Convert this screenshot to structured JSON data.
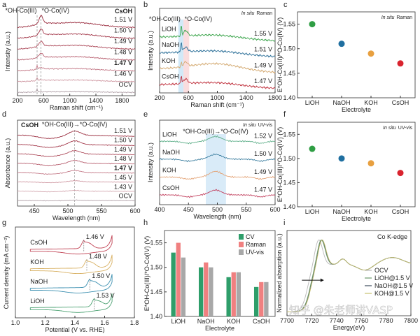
{
  "chart_data": [
    {
      "panel": "a",
      "type": "line",
      "title": "CsOH",
      "xlabel": "Raman shift (cm⁻¹)",
      "ylabel": "Intensity (a.u.)",
      "xlim": [
        200,
        2000
      ],
      "xticks": [
        "200",
        "600",
        "1000",
        "1400",
        "1800"
      ],
      "annotations": [
        "*OH-Co(III)",
        "*O-Co(IV)"
      ],
      "marker_lines_x": [
        500,
        560
      ],
      "series": [
        {
          "name": "1.51 V",
          "color": "#9a2c3e",
          "peak_500": 0.0,
          "peak_560": 0.75,
          "broad": 0.45
        },
        {
          "name": "1.50 V",
          "color": "#a3384a",
          "peak_500": 0.0,
          "peak_560": 0.55,
          "broad": 0.4
        },
        {
          "name": "1.49 V",
          "color": "#ad4a5a",
          "peak_500": 0.05,
          "peak_560": 0.45,
          "broad": 0.35
        },
        {
          "name": "1.48 V",
          "color": "#b86070",
          "peak_500": 0.1,
          "peak_560": 0.4,
          "broad": 0.3
        },
        {
          "name": "1.47 V",
          "color": "#c47a88",
          "peak_500": 0.35,
          "peak_560": 0.15,
          "broad": 0.2,
          "bold": true
        },
        {
          "name": "1.46 V",
          "color": "#cf98a2",
          "peak_500": 0.3,
          "peak_560": 0.05,
          "broad": 0.15
        },
        {
          "name": "OCV",
          "color": "#b0a0a8",
          "peak_500": 0.25,
          "peak_560": 0.0,
          "broad": 0.08
        }
      ]
    },
    {
      "panel": "b",
      "type": "line",
      "xlabel": "Raman shift (cm⁻¹)",
      "ylabel": "Intensity (a.u.)",
      "xlim": [
        200,
        1800
      ],
      "xticks": [
        "200",
        "600",
        "1000",
        "1400",
        "1800"
      ],
      "annotation_italic": "In situ",
      "annotation": "Raman",
      "annotations": [
        "*OH-Co(III)",
        "*O-Co(IV)"
      ],
      "bands": [
        {
          "from": 460,
          "to": 530,
          "color": "#bfe0f5"
        },
        {
          "from": 530,
          "to": 610,
          "color": "#f8cfd0"
        }
      ],
      "series": [
        {
          "name": "LiOH",
          "potential": "1.55 V",
          "color": "#3ca54c",
          "peak_sharp": 0.7,
          "peak_broad": 0.35
        },
        {
          "name": "NaOH",
          "potential": "1.51 V",
          "color": "#2b6f98",
          "peak_sharp": 0.7,
          "peak_broad": 0.3
        },
        {
          "name": "KOH",
          "potential": "1.49 V",
          "color": "#d4aa72",
          "peak_sharp": 0.25,
          "peak_broad": 0.3
        },
        {
          "name": "CsOH",
          "potential": "1.47 V",
          "color": "#c0313d",
          "peak_sharp": 0.55,
          "peak_broad": 0.3
        }
      ]
    },
    {
      "panel": "c",
      "type": "scatter",
      "categories": [
        "LiOH",
        "NaOH",
        "KOH",
        "CsOH"
      ],
      "values": [
        1.55,
        1.51,
        1.49,
        1.47
      ],
      "colors": [
        "#2f9e44",
        "#1f6fa0",
        "#e8a040",
        "#d9232e"
      ],
      "xlabel": "Electrolyte",
      "ylabel": "E*OH-Co(III)/*O-Co(IV) (V)",
      "ylim": [
        1.4,
        1.575
      ],
      "yticks": [
        "1.40",
        "1.45",
        "1.50",
        "1.55"
      ],
      "annotation_italic": "In situ",
      "annotation": "Raman"
    },
    {
      "panel": "d",
      "type": "line",
      "title": "CsOH",
      "xlabel": "Wavelength (nm)",
      "ylabel": "Absorbance (a.u.)",
      "xlim": [
        425,
        600
      ],
      "xticks": [
        "450",
        "500",
        "550",
        "600"
      ],
      "annotation": "*OH-Co(III)→*O-Co(IV)",
      "marker_line_x": 510,
      "series": [
        {
          "name": "1.51 V",
          "color": "#9a2c3e",
          "peak": 0.45
        },
        {
          "name": "1.50 V",
          "color": "#a3384a",
          "peak": 0.4
        },
        {
          "name": "1.49 V",
          "color": "#ad4a5a",
          "peak": 0.35
        },
        {
          "name": "1.48 V",
          "color": "#b86070",
          "peak": 0.3
        },
        {
          "name": "1.47 V",
          "color": "#c47a88",
          "peak": 0.22,
          "bold": true
        },
        {
          "name": "1.45 V",
          "color": "#cf98a2",
          "peak": 0.12
        },
        {
          "name": "1.43 V",
          "color": "#d4a8b0",
          "peak": 0.08
        },
        {
          "name": "OCV",
          "color": "#b0a0a8",
          "peak": 0.04
        }
      ]
    },
    {
      "panel": "e",
      "type": "line",
      "xlabel": "Wavelength (nm)",
      "ylabel": "Intensity (a.u.)",
      "xlim": [
        400,
        600
      ],
      "xticks": [
        "400",
        "450",
        "500",
        "550",
        "600"
      ],
      "annotation_italic": "In situ",
      "annotation": "UV-vis",
      "band_label": "*OH-Co(III)→*O-Co(IV)",
      "band": {
        "from": 480,
        "to": 515,
        "color": "#cfe6f6"
      },
      "series": [
        {
          "name": "LiOH",
          "potential": "1.52 V",
          "color": "#5faf8a",
          "peak": 0.3
        },
        {
          "name": "NaOH",
          "potential": "1.50 V",
          "color": "#3d7fa0",
          "peak": 0.3
        },
        {
          "name": "KOH",
          "potential": "1.49 V",
          "color": "#e3a274",
          "peak": 0.35
        },
        {
          "name": "CsOH",
          "potential": "1.47 V",
          "color": "#c2405e",
          "peak": 0.3
        }
      ]
    },
    {
      "panel": "f",
      "type": "scatter",
      "categories": [
        "LiOH",
        "NaOH",
        "KOH",
        "CsOH"
      ],
      "values": [
        1.52,
        1.5,
        1.49,
        1.47
      ],
      "colors": [
        "#2f9e44",
        "#1f6fa0",
        "#e8a040",
        "#d9232e"
      ],
      "xlabel": "Electrolyte",
      "ylabel": "E*OH-Co(III)/*O-Co(IV) (V)",
      "ylim": [
        1.4,
        1.575
      ],
      "yticks": [
        "1.40",
        "1.45",
        "1.50",
        "1.55"
      ],
      "annotation_italic": "In situ",
      "annotation": "UV-vis"
    },
    {
      "panel": "g",
      "type": "line",
      "xlabel": "Potential (V vs. RHE)",
      "ylabel": "Current density (mA cm⁻²)",
      "xlim": [
        1.0,
        1.8
      ],
      "xticks": [
        "1.0",
        "1.2",
        "1.4",
        "1.6",
        "1.8"
      ],
      "series": [
        {
          "name": "CsOH",
          "color": "#c04052",
          "peak_potential": 1.46,
          "peak_label": "1.46 V"
        },
        {
          "name": "KOH",
          "color": "#d8b062",
          "peak_potential": 1.48,
          "peak_label": "1.48 V"
        },
        {
          "name": "NaOH",
          "color": "#3b8fb0",
          "peak_potential": 1.5,
          "peak_label": "1.50 V"
        },
        {
          "name": "LiOH",
          "color": "#4aa070",
          "peak_potential": 1.53,
          "peak_label": "1.53 V"
        }
      ]
    },
    {
      "panel": "h",
      "type": "bar",
      "categories": [
        "LiOH",
        "NaOH",
        "KOH",
        "CsOH"
      ],
      "series": [
        {
          "name": "CV",
          "color": "#2e9e6a",
          "values": [
            1.53,
            1.5,
            1.48,
            1.46
          ]
        },
        {
          "name": "Raman",
          "color": "#f08080",
          "values": [
            1.55,
            1.51,
            1.49,
            1.47
          ]
        },
        {
          "name": "UV-vis",
          "color": "#a8a8a8",
          "values": [
            1.52,
            1.5,
            1.49,
            1.47
          ]
        }
      ],
      "xlabel": "Electrolyte",
      "ylabel": "E*OH-Co(III)/*O-Co(IV) (V)",
      "ylim": [
        1.4,
        1.575
      ],
      "yticks": [
        "1.40",
        "1.45",
        "1.50",
        "1.55"
      ],
      "legend": "top-right"
    },
    {
      "panel": "i",
      "type": "line",
      "xlabel": "Energy(eV)",
      "ylabel": "Normalized absorption (a.u.)",
      "xlim": [
        7700,
        7800
      ],
      "xticks": [
        "7700",
        "7720",
        "7740",
        "7760",
        "7780",
        "7800"
      ],
      "annotation": "Co K-edge",
      "legend": "bottom-right",
      "series": [
        {
          "name": "OCV",
          "color": "#b8b8b8",
          "edge_eV": 7716.5
        },
        {
          "name": "LiOH@1.5 V",
          "color": "#6a9a6a",
          "edge_eV": 7718.5
        },
        {
          "name": "NaOH@1.5 V",
          "color": "#3e4e5e",
          "edge_eV": 7719
        },
        {
          "name": "KOH@1.5 V",
          "color": "#c8c070",
          "edge_eV": 7719.2
        }
      ]
    }
  ],
  "panel_letters": [
    "a",
    "b",
    "c",
    "d",
    "e",
    "f",
    "g",
    "h",
    "i"
  ],
  "watermark": "知乎 @朱老师讲VASP"
}
